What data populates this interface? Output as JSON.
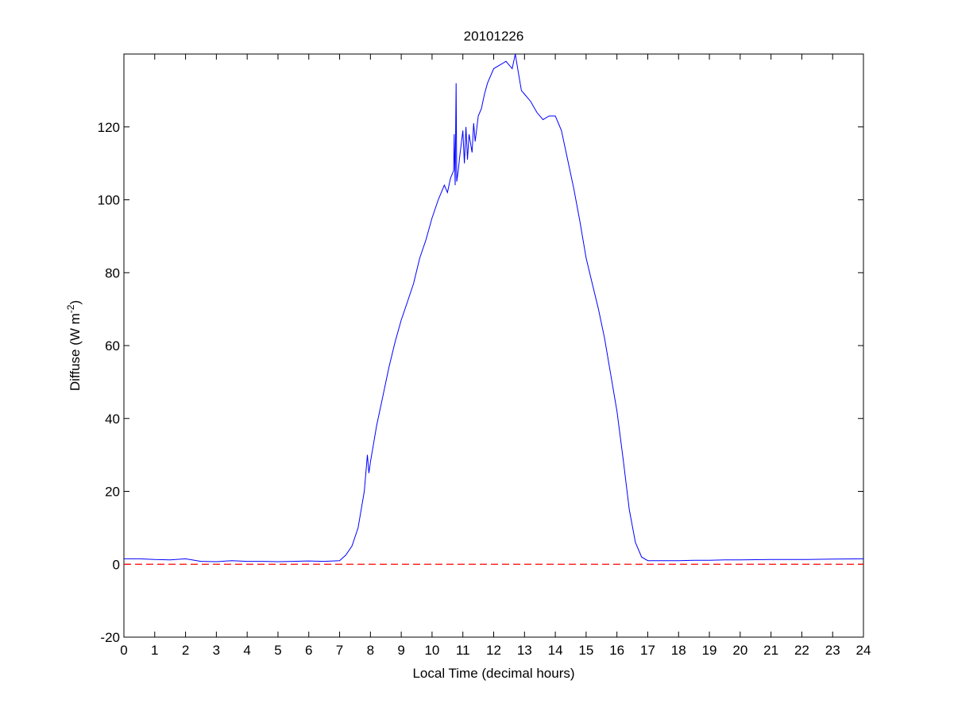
{
  "chart_data": {
    "type": "line",
    "title": "20101226",
    "xlabel": "Local Time (decimal hours)",
    "ylabel": "Diffuse (W m",
    "ylabel_sup": "-2",
    "ylabel_close": ")",
    "xlim": [
      0,
      24
    ],
    "ylim": [
      -20,
      140
    ],
    "xticks": [
      0,
      1,
      2,
      3,
      4,
      5,
      6,
      7,
      8,
      9,
      10,
      11,
      12,
      13,
      14,
      15,
      16,
      17,
      18,
      19,
      20,
      21,
      22,
      23,
      24
    ],
    "yticks": [
      -20,
      0,
      20,
      40,
      60,
      80,
      100,
      120
    ],
    "grid": false,
    "reference_line": {
      "y": 0,
      "color": "#ff0000",
      "style": "dashed"
    },
    "series": [
      {
        "color": "#0000ff",
        "x": [
          0,
          0.5,
          1,
          1.5,
          2,
          2.5,
          3,
          3.5,
          4,
          4.5,
          5,
          5.5,
          6,
          6.5,
          7,
          7.2,
          7.4,
          7.6,
          7.8,
          7.9,
          7.95,
          8,
          8.1,
          8.2,
          8.4,
          8.6,
          8.8,
          9,
          9.2,
          9.4,
          9.6,
          9.8,
          10,
          10.2,
          10.4,
          10.5,
          10.6,
          10.7,
          10.72,
          10.75,
          10.78,
          10.8,
          10.85,
          10.9,
          11,
          11.05,
          11.1,
          11.15,
          11.2,
          11.3,
          11.35,
          11.4,
          11.5,
          11.6,
          11.7,
          11.8,
          12,
          12.2,
          12.4,
          12.6,
          12.7,
          12.8,
          12.9,
          13,
          13.2,
          13.4,
          13.6,
          13.8,
          14,
          14.2,
          14.4,
          14.6,
          14.8,
          15,
          15.2,
          15.4,
          15.6,
          15.8,
          16,
          16.2,
          16.4,
          16.6,
          16.8,
          17,
          17.2,
          17.5,
          18,
          18.5,
          19,
          19.5,
          20,
          21,
          22,
          23,
          24
        ],
        "y": [
          1.5,
          1.5,
          1.3,
          1.2,
          1.5,
          0.8,
          0.7,
          1,
          0.8,
          0.8,
          0.7,
          0.8,
          0.9,
          0.8,
          1,
          2.5,
          5,
          10,
          20,
          30,
          25,
          28,
          33,
          38,
          46,
          54,
          61,
          67,
          72,
          77,
          84,
          89,
          95,
          100,
          104,
          102,
          106,
          108,
          118,
          104,
          132,
          105,
          108,
          112,
          119,
          110,
          120,
          111,
          118,
          113,
          121,
          116,
          123,
          125,
          129,
          132,
          136,
          137,
          138,
          136,
          140,
          135,
          130,
          129,
          127,
          124,
          122,
          123,
          123,
          119,
          111,
          103,
          94,
          84,
          77,
          70,
          62,
          52,
          42,
          29,
          15,
          6,
          2,
          1,
          1,
          1,
          1,
          1.1,
          1.1,
          1.2,
          1.2,
          1.3,
          1.3,
          1.4,
          1.5
        ]
      }
    ]
  }
}
